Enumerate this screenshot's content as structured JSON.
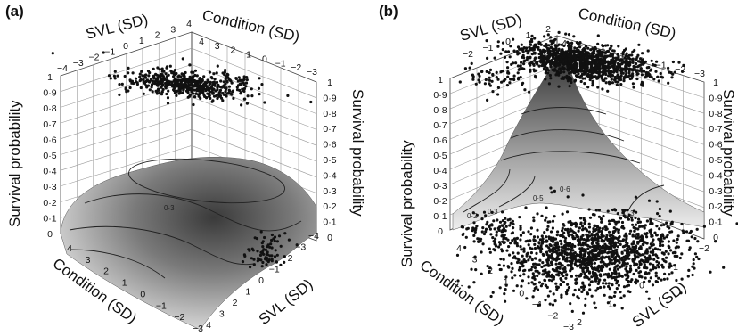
{
  "chart_data": [
    {
      "type": "surface3d",
      "panel_label": "(a)",
      "xlabel": "SVL (SD)",
      "ylabel": "Condition (SD)",
      "zlabel": "Survival probability",
      "x_ticks": [
        "−4",
        "−3",
        "−2",
        "−1",
        "0",
        "1",
        "2",
        "3",
        "4"
      ],
      "y_ticks": [
        "4",
        "3",
        "2",
        "1",
        "0",
        "−1",
        "−2",
        "−3"
      ],
      "z_ticks": [
        "0",
        "0·1",
        "0·2",
        "0·3",
        "0·4",
        "0·5",
        "0·6",
        "0·7",
        "0·8",
        "0·9",
        "1"
      ],
      "surface": {
        "peak_survival": 0.34,
        "peak_svl": 0.5,
        "peak_condition": 1.0
      },
      "contour_labels": [
        "0·3"
      ],
      "points_survived": {
        "value": 1,
        "svl_range": [
          -2,
          3
        ],
        "condition_range": [
          -3,
          3
        ]
      },
      "points_died": {
        "value": 0,
        "svl_range": [
          -2.5,
          2
        ],
        "condition_range": [
          -3,
          2
        ]
      }
    },
    {
      "type": "surface3d",
      "panel_label": "(b)",
      "xlabel": "SVL (SD)",
      "ylabel": "Condition (SD)",
      "zlabel": "Survival probability",
      "x_ticks": [
        "−2",
        "−1",
        "0",
        "1",
        "2"
      ],
      "y_ticks": [
        "4",
        "3",
        "2",
        "1",
        "0",
        "−1",
        "−2",
        "−3"
      ],
      "z_ticks": [
        "0",
        "0·1",
        "0·2",
        "0·3",
        "0·4",
        "0·5",
        "0·6",
        "0·7",
        "0·8",
        "0·9",
        "1"
      ],
      "surface": {
        "peak_survival": 0.95,
        "peak_svl": 2.0,
        "peak_condition": 4.0
      },
      "contour_labels": [
        "0·2",
        "0·3",
        "0·5",
        "0·6",
        "0·3"
      ],
      "points_survived": {
        "value": 1,
        "svl_range": [
          -2,
          2
        ],
        "condition_range": [
          -3,
          4
        ]
      },
      "points_died": {
        "value": 0,
        "svl_range": [
          -2,
          2
        ],
        "condition_range": [
          -3,
          4
        ]
      }
    }
  ]
}
